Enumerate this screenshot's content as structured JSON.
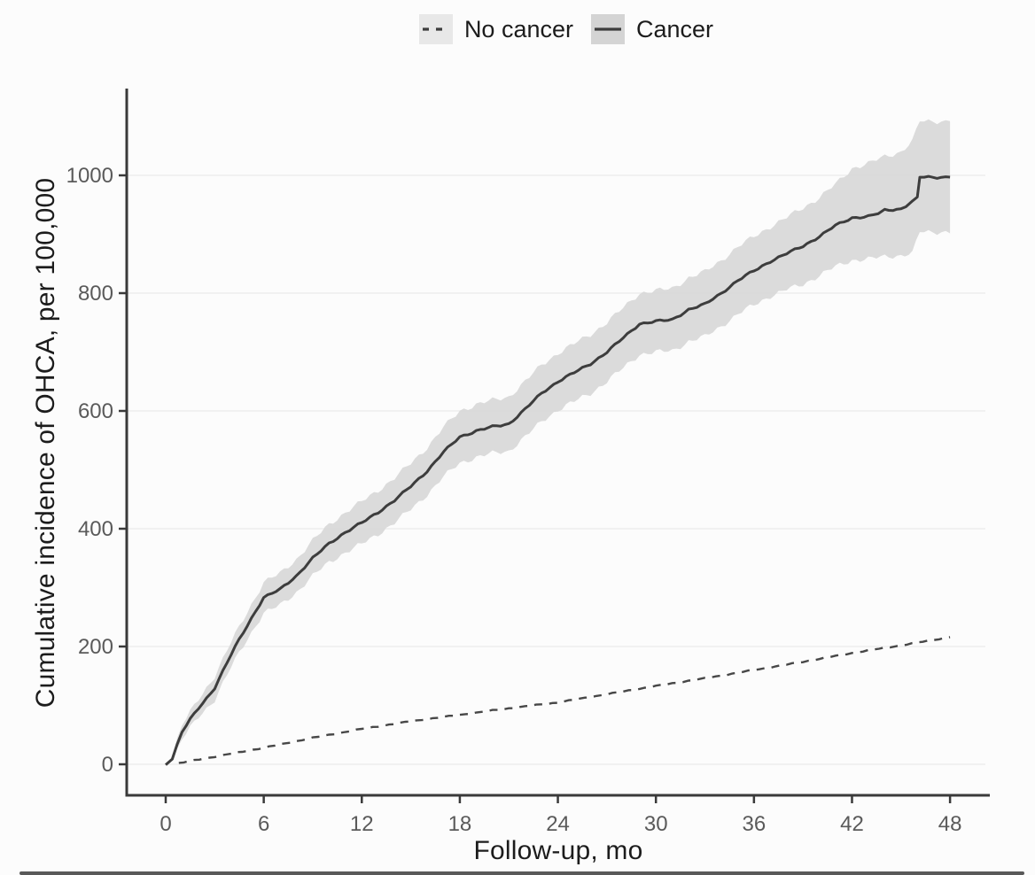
{
  "figure": {
    "legend": {
      "items": [
        {
          "label": "No cancer",
          "line_style": "dashed",
          "key_fill": "#e8e8e8"
        },
        {
          "label": "Cancer",
          "line_style": "solid",
          "key_fill": "#d4d4d4"
        }
      ]
    },
    "y_axis_title": "Cumulative incidence of OHCA, per 100,000",
    "x_axis_title": "Follow-up, mo",
    "colors": {
      "cancer_line": "#3d3d3d",
      "no_cancer_line": "#474747",
      "ci_band": "#d8d8d8",
      "gridline": "#ededed",
      "axis_line": "#3a3a3a",
      "tick_label": "#5a5a5a",
      "axis_title": "#1c1c1c",
      "background": "#fcfcfc"
    }
  },
  "chart_data": {
    "type": "line",
    "title": "",
    "xlabel": "Follow-up, mo",
    "ylabel": "Cumulative incidence of OHCA, per 100,000",
    "x_ticks": [
      0,
      6,
      12,
      18,
      24,
      30,
      36,
      42,
      48
    ],
    "y_ticks": [
      0,
      200,
      400,
      600,
      800,
      1000
    ],
    "xlim": [
      0,
      48
    ],
    "ylim": [
      0,
      1150
    ],
    "grid": "horizontal",
    "legend_position": "top-center",
    "series": [
      {
        "name": "Cancer",
        "style": "solid",
        "points": [
          [
            0,
            0
          ],
          [
            0.4,
            10
          ],
          [
            1,
            55
          ],
          [
            1.5,
            76
          ],
          [
            2,
            95
          ],
          [
            2.5,
            112
          ],
          [
            3,
            130
          ],
          [
            3.5,
            158
          ],
          [
            4,
            186
          ],
          [
            4.5,
            212
          ],
          [
            5,
            236
          ],
          [
            5.5,
            260
          ],
          [
            6,
            283
          ],
          [
            7,
            297
          ],
          [
            8,
            320
          ],
          [
            9,
            350
          ],
          [
            10,
            375
          ],
          [
            11,
            394
          ],
          [
            12,
            410
          ],
          [
            13,
            428
          ],
          [
            14,
            448
          ],
          [
            15,
            472
          ],
          [
            16,
            498
          ],
          [
            17,
            530
          ],
          [
            18,
            556
          ],
          [
            19,
            566
          ],
          [
            20,
            573
          ],
          [
            21,
            578
          ],
          [
            22,
            603
          ],
          [
            23,
            630
          ],
          [
            24,
            650
          ],
          [
            25,
            665
          ],
          [
            26,
            680
          ],
          [
            27,
            700
          ],
          [
            28,
            724
          ],
          [
            29,
            748
          ],
          [
            30,
            752
          ],
          [
            31,
            755
          ],
          [
            32,
            772
          ],
          [
            33,
            781
          ],
          [
            34,
            800
          ],
          [
            35,
            821
          ],
          [
            36,
            838
          ],
          [
            37,
            854
          ],
          [
            38,
            867
          ],
          [
            39,
            880
          ],
          [
            40,
            896
          ],
          [
            41,
            915
          ],
          [
            42,
            928
          ],
          [
            43,
            930
          ],
          [
            43.6,
            935
          ],
          [
            44,
            941
          ],
          [
            45,
            943
          ],
          [
            45.3,
            948
          ],
          [
            45.7,
            955
          ],
          [
            46,
            962
          ],
          [
            46.15,
            997
          ],
          [
            48,
            997
          ]
        ],
        "ci_band": {
          "x": [
            0.4,
            1,
            2,
            3,
            4,
            5,
            6,
            7,
            8,
            9,
            10,
            11,
            12,
            13,
            14,
            15,
            16,
            17,
            18,
            19,
            20,
            21,
            22,
            23,
            24,
            25,
            26,
            27,
            28,
            29,
            30,
            31,
            32,
            33,
            34,
            35,
            36,
            37,
            38,
            39,
            40,
            41,
            42,
            43,
            44,
            45,
            45.7,
            46.15,
            48
          ],
          "lower": [
            5,
            43,
            80,
            110,
            165,
            213,
            257,
            270,
            292,
            320,
            343,
            360,
            374,
            391,
            410,
            433,
            458,
            488,
            512,
            521,
            528,
            532,
            556,
            582,
            602,
            616,
            630,
            650,
            673,
            696,
            700,
            702,
            718,
            726,
            744,
            764,
            780,
            795,
            806,
            815,
            830,
            845,
            856,
            858,
            862,
            864,
            868,
            904,
            904
          ],
          "upper": [
            16,
            67,
            110,
            150,
            207,
            259,
            309,
            324,
            348,
            380,
            407,
            428,
            446,
            465,
            486,
            511,
            538,
            572,
            600,
            611,
            618,
            624,
            650,
            678,
            698,
            714,
            730,
            750,
            775,
            800,
            804,
            808,
            826,
            836,
            856,
            878,
            896,
            913,
            928,
            945,
            962,
            985,
            1012,
            1020,
            1032,
            1040,
            1058,
            1092,
            1092
          ]
        }
      },
      {
        "name": "No cancer",
        "style": "dashed",
        "points": [
          [
            0.8,
            2
          ],
          [
            3,
            13
          ],
          [
            6,
            28
          ],
          [
            9,
            45
          ],
          [
            12,
            60
          ],
          [
            15,
            73
          ],
          [
            18,
            84
          ],
          [
            21,
            95
          ],
          [
            24,
            105
          ],
          [
            27,
            119
          ],
          [
            30,
            133
          ],
          [
            33,
            146
          ],
          [
            36,
            160
          ],
          [
            39,
            174
          ],
          [
            42,
            189
          ],
          [
            45,
            202
          ],
          [
            48,
            216
          ]
        ]
      }
    ]
  }
}
